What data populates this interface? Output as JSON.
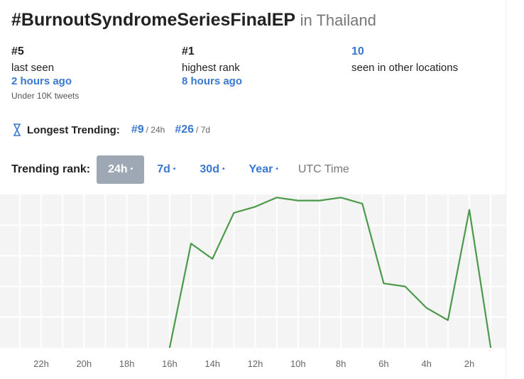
{
  "header": {
    "title": "#BurnoutSyndromeSeriesFinalEP",
    "location": "in Thailand"
  },
  "stats": [
    {
      "value": "#5",
      "label": "last seen",
      "time": "2 hours ago",
      "note": "Under 10K tweets"
    },
    {
      "value": "#1",
      "label": "highest rank",
      "time": "8 hours ago"
    },
    {
      "value": "10",
      "label": "seen in other locations"
    }
  ],
  "longest": {
    "icon": "hourglass-icon",
    "label": "Longest Trending:",
    "items": [
      {
        "rank": "#9",
        "period": "/ 24h"
      },
      {
        "rank": "#26",
        "period": "/ 7d"
      }
    ]
  },
  "trending_rank": {
    "label": "Trending rank:",
    "tabs": [
      "24h",
      "7d",
      "30d",
      "Year"
    ],
    "active": "24h",
    "dot": "•",
    "timezone": "UTC Time"
  },
  "colors": {
    "line": "#4a9a4a",
    "accent": "#3a78d0",
    "chart_bg": "#f4f4f4"
  },
  "chart_data": {
    "type": "line",
    "x_labels": [
      "22h",
      "20h",
      "18h",
      "16h",
      "14h",
      "12h",
      "10h",
      "8h",
      "6h",
      "4h",
      "2h"
    ],
    "x_hours_ago": [
      16,
      15,
      14,
      13,
      12,
      11,
      10,
      9,
      8,
      7,
      6,
      5,
      4,
      3,
      2,
      1
    ],
    "ranks": [
      50,
      16,
      21,
      6,
      4,
      1,
      2,
      2,
      1,
      3,
      29,
      30,
      37,
      41,
      5,
      50
    ],
    "ylim": [
      0,
      50
    ],
    "y_reversed": true,
    "grid": true
  }
}
